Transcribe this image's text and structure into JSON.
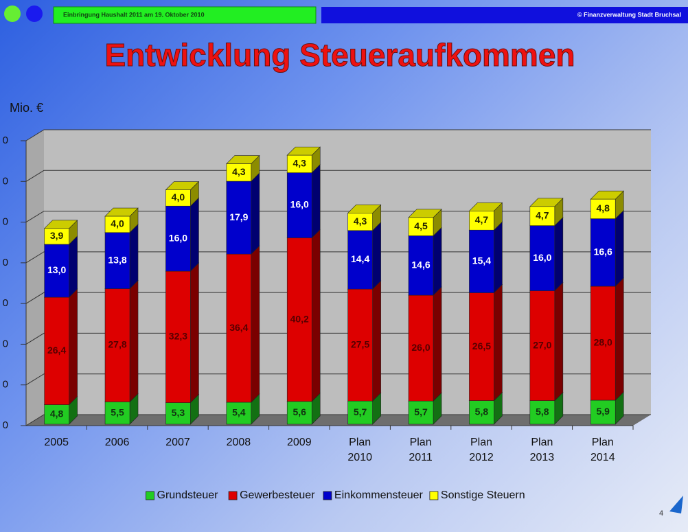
{
  "header_left": "Einbringung Haushalt 2011 am 19. Oktober 2010",
  "header_right": "© Finanzverwaltung Stadt Bruchsal",
  "page_number": "4",
  "chart_data": {
    "type": "bar3d_stacked",
    "title": "Entwicklung Steueraufkommen",
    "y_label": "Mio. €",
    "categories": [
      "2005",
      "2006",
      "2007",
      "2008",
      "2009",
      "Plan 2010",
      "Plan 2011",
      "Plan 2012",
      "Plan 2013",
      "Plan 2014"
    ],
    "ylim": [
      0,
      70
    ],
    "yticks": [
      0,
      {
        "value": 10,
        "label": "0"
      },
      {
        "value": 20,
        "label": "0"
      },
      {
        "value": 30,
        "label": "0"
      },
      {
        "value": 40,
        "label": "0"
      },
      {
        "value": 50,
        "label": "0"
      },
      {
        "value": 60,
        "label": "0"
      },
      {
        "value": 70,
        "label": "0"
      }
    ],
    "grid": true,
    "legend": "bottom",
    "series": [
      {
        "name": "Grundsteuer",
        "color": "#22cc22",
        "values": [
          4.8,
          5.5,
          5.3,
          5.4,
          5.6,
          5.7,
          5.7,
          5.8,
          5.8,
          5.9
        ],
        "value_labels": [
          "4,8",
          "5,5",
          "5,3",
          "5,4",
          "5,6",
          "5,7",
          "5,7",
          "5,8",
          "5,8",
          "5,9"
        ]
      },
      {
        "name": "Gewerbesteuer",
        "color": "#dd0000",
        "values": [
          26.4,
          27.8,
          32.3,
          36.4,
          40.2,
          27.5,
          26.0,
          26.5,
          27.0,
          28.0
        ],
        "value_labels": [
          "26,4",
          "27,8",
          "32,3",
          "36,4",
          "40,2",
          "27,5",
          "26,0",
          "26,5",
          "27,0",
          "28,0"
        ]
      },
      {
        "name": "Einkommensteuer",
        "color": "#0000cc",
        "values": [
          13.0,
          13.8,
          16.0,
          17.9,
          16.0,
          14.4,
          14.6,
          15.4,
          16.0,
          16.6
        ],
        "value_labels": [
          "13,0",
          "13,8",
          "16,0",
          "17,9",
          "16,0",
          "14,4",
          "14,6",
          "15,4",
          "16,0",
          "16,6"
        ]
      },
      {
        "name": "Sonstige Steuern",
        "color": "#ffff00",
        "values": [
          3.9,
          4.0,
          4.0,
          4.3,
          4.3,
          4.3,
          4.5,
          4.7,
          4.7,
          4.8
        ],
        "value_labels": [
          "3,9",
          "4,0",
          "4,0",
          "4,3",
          "4,3",
          "4,3",
          "4,5",
          "4,7",
          "4,7",
          "4,8"
        ]
      }
    ]
  }
}
